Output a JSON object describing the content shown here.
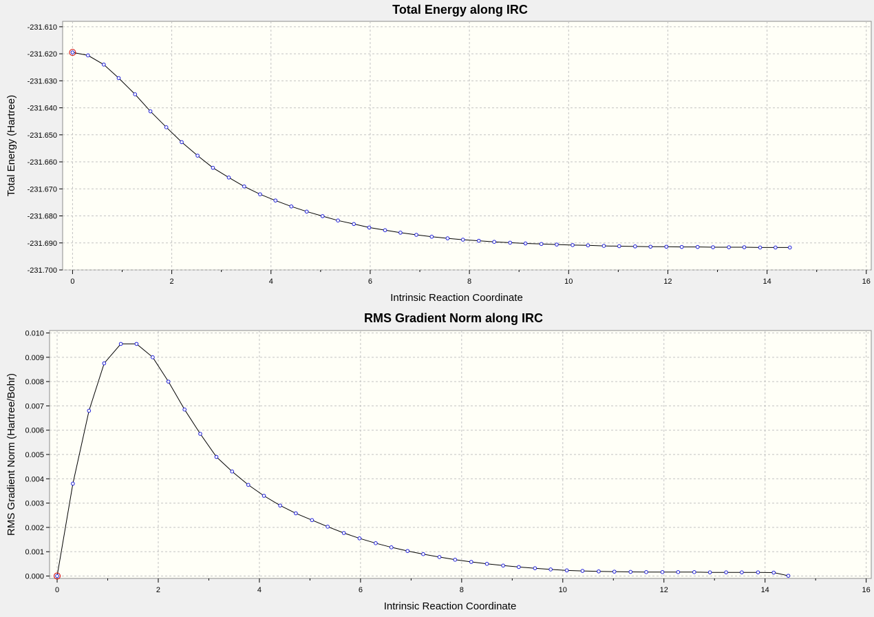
{
  "chart_data": [
    {
      "type": "line",
      "title": "Total Energy along IRC",
      "xlabel": "Intrinsic Reaction Coordinate",
      "ylabel": "Total Energy (Hartree)",
      "xlim": [
        -0.2,
        16.1
      ],
      "ylim": [
        -231.7,
        -231.608
      ],
      "xticks": [
        0,
        2,
        4,
        6,
        8,
        10,
        12,
        14,
        16
      ],
      "yticks": [
        -231.61,
        -231.62,
        -231.63,
        -231.64,
        -231.65,
        -231.66,
        -231.67,
        -231.68,
        -231.69,
        -231.7
      ],
      "xtick_labels": [
        "0",
        "2",
        "4",
        "6",
        "8",
        "10",
        "12",
        "14",
        "16"
      ],
      "ytick_labels": [
        "-231.610",
        "-231.620",
        "-231.630",
        "-231.640",
        "-231.650",
        "-231.660",
        "-231.670",
        "-231.680",
        "-231.690",
        "-231.700"
      ],
      "grid": true,
      "highlight_index": 0,
      "x": [
        0.0,
        0.311,
        0.63,
        0.93,
        1.26,
        1.57,
        1.89,
        2.2,
        2.52,
        2.83,
        3.15,
        3.46,
        3.78,
        4.09,
        4.41,
        4.72,
        5.04,
        5.35,
        5.67,
        5.98,
        6.3,
        6.61,
        6.93,
        7.24,
        7.56,
        7.87,
        8.19,
        8.5,
        8.82,
        9.13,
        9.45,
        9.76,
        10.08,
        10.39,
        10.71,
        11.02,
        11.34,
        11.65,
        11.97,
        12.28,
        12.6,
        12.91,
        13.23,
        13.54,
        13.86,
        14.17,
        14.46
      ],
      "y": [
        -231.6195,
        -231.6206,
        -231.624,
        -231.629,
        -231.635,
        -231.6413,
        -231.6472,
        -231.6527,
        -231.6577,
        -231.6622,
        -231.6658,
        -231.6691,
        -231.672,
        -231.6743,
        -231.6765,
        -231.6784,
        -231.6801,
        -231.6817,
        -231.683,
        -231.6843,
        -231.6853,
        -231.6862,
        -231.687,
        -231.6877,
        -231.6883,
        -231.6888,
        -231.6892,
        -231.6896,
        -231.6899,
        -231.6902,
        -231.6904,
        -231.6906,
        -231.6908,
        -231.6909,
        -231.6911,
        -231.6912,
        -231.6913,
        -231.6914,
        -231.6914,
        -231.6915,
        -231.6915,
        -231.6916,
        -231.6916,
        -231.6916,
        -231.6917,
        -231.6917,
        -231.6917
      ]
    },
    {
      "type": "line",
      "title": "RMS Gradient Norm along IRC",
      "xlabel": "Intrinsic Reaction Coordinate",
      "ylabel": "RMS Gradient Norm (Hartree/Bohr)",
      "xlim": [
        -0.15,
        16.1
      ],
      "ylim": [
        -0.0001,
        0.0101
      ],
      "xticks": [
        0,
        2,
        4,
        6,
        8,
        10,
        12,
        14,
        16
      ],
      "yticks": [
        0.0,
        0.001,
        0.002,
        0.003,
        0.004,
        0.005,
        0.006,
        0.007,
        0.008,
        0.009,
        0.01
      ],
      "xtick_labels": [
        "0",
        "2",
        "4",
        "6",
        "8",
        "10",
        "12",
        "14",
        "16"
      ],
      "ytick_labels": [
        "0.000",
        "0.001",
        "0.002",
        "0.003",
        "0.004",
        "0.005",
        "0.006",
        "0.007",
        "0.008",
        "0.009",
        "0.010"
      ],
      "grid": true,
      "highlight_index": 0,
      "x": [
        0.0,
        0.311,
        0.63,
        0.93,
        1.26,
        1.57,
        1.89,
        2.2,
        2.52,
        2.83,
        3.15,
        3.46,
        3.78,
        4.09,
        4.41,
        4.72,
        5.04,
        5.35,
        5.67,
        5.98,
        6.3,
        6.61,
        6.93,
        7.24,
        7.56,
        7.87,
        8.19,
        8.5,
        8.82,
        9.13,
        9.45,
        9.76,
        10.08,
        10.39,
        10.71,
        11.02,
        11.34,
        11.65,
        11.97,
        12.28,
        12.6,
        12.91,
        13.23,
        13.54,
        13.86,
        14.17,
        14.46
      ],
      "y": [
        0.0,
        0.0038,
        0.0068,
        0.00875,
        0.00955,
        0.00955,
        0.009,
        0.008,
        0.00685,
        0.00585,
        0.0049,
        0.0043,
        0.00375,
        0.0033,
        0.0029,
        0.00258,
        0.0023,
        0.00203,
        0.00177,
        0.00155,
        0.00135,
        0.00118,
        0.00103,
        0.0009,
        0.00078,
        0.00067,
        0.00058,
        0.0005,
        0.00043,
        0.00037,
        0.00032,
        0.00027,
        0.00023,
        0.00021,
        0.00019,
        0.00018,
        0.00017,
        0.00016,
        0.00016,
        0.00016,
        0.00016,
        0.00015,
        0.00015,
        0.00015,
        0.00015,
        0.00014,
        1e-05
      ]
    }
  ]
}
